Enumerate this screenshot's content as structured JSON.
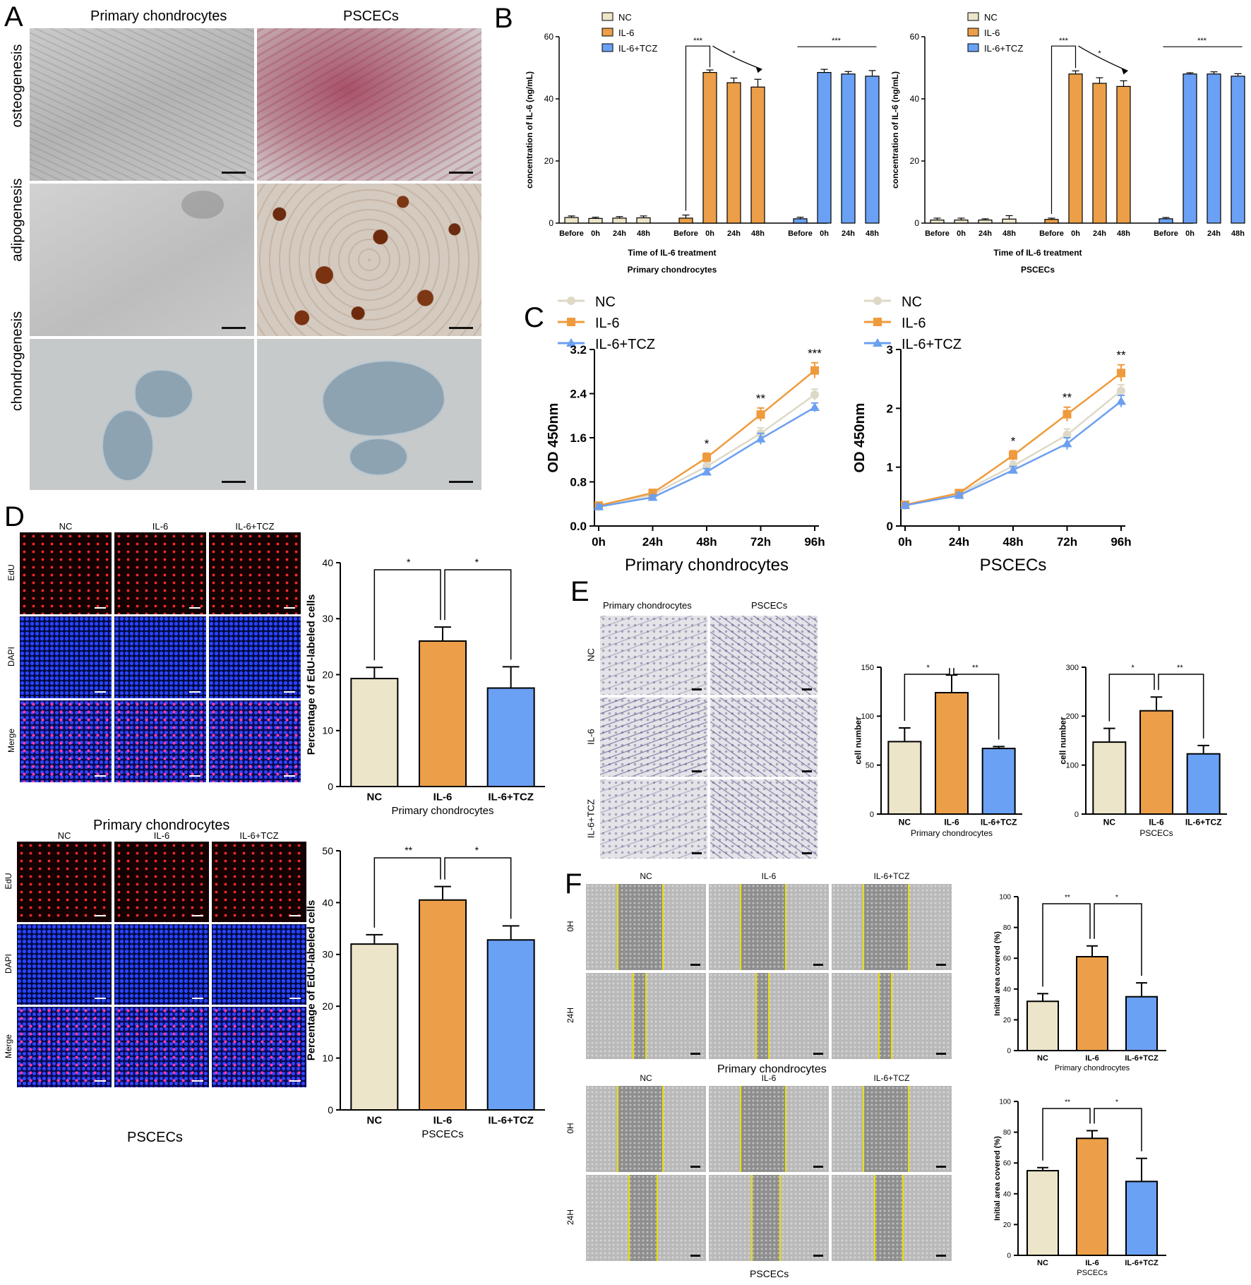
{
  "colors": {
    "nc": "#ece5c9",
    "il6": "#ec9f48",
    "tcz": "#6aa1f5",
    "line_nc": "#ded9c6",
    "line_il6": "#ef9a3c",
    "line_tcz": "#6b9ff0"
  },
  "panelA": {
    "letter": "A",
    "col_labels": [
      "Primary chondrocytes",
      "PSCECs"
    ],
    "row_labels": [
      "osteogenesis",
      "adipogenesis",
      "chondrogenesis"
    ]
  },
  "panelB": {
    "letter": "B",
    "legend": [
      "NC",
      "IL-6",
      "IL-6+TCZ"
    ],
    "ylabel": "concentration of IL-6 (ng/mL)",
    "xlabel": "Time of IL-6 treatment",
    "ticks": [
      "0",
      "20",
      "40",
      "60"
    ],
    "time_labels": [
      "Before",
      "0h",
      "24h",
      "48h"
    ],
    "sig": [
      "***",
      "*",
      "***"
    ],
    "charts": [
      {
        "title": "Primary chondrocytes",
        "groups": [
          {
            "name": "NC",
            "values": [
              1.8,
              1.5,
              1.6,
              1.7
            ]
          },
          {
            "name": "IL-6",
            "values": [
              1.6,
              48.5,
              45.2,
              43.8
            ]
          },
          {
            "name": "IL-6+TCZ",
            "values": [
              1.4,
              48.5,
              48.0,
              47.3
            ]
          }
        ],
        "errors": [
          [
            0.5,
            0.4,
            0.5,
            0.6
          ],
          [
            1.0,
            0.8,
            1.5,
            2.5
          ],
          [
            0.5,
            1.0,
            0.8,
            1.8
          ]
        ]
      },
      {
        "title": "PSCECs",
        "groups": [
          {
            "name": "NC",
            "values": [
              1.0,
              1.0,
              1.0,
              1.3
            ]
          },
          {
            "name": "IL-6",
            "values": [
              1.2,
              48.0,
              45.0,
              44.0
            ]
          },
          {
            "name": "IL-6+TCZ",
            "values": [
              1.4,
              48.0,
              48.0,
              47.3
            ]
          }
        ],
        "errors": [
          [
            0.6,
            0.6,
            0.4,
            1.1
          ],
          [
            0.4,
            1.0,
            1.8,
            1.8
          ],
          [
            0.4,
            0.4,
            0.7,
            0.8
          ]
        ]
      }
    ]
  },
  "panelC": {
    "letter": "C",
    "legend": [
      "NC",
      "IL-6",
      "IL-6+TCZ"
    ],
    "ylabel": "OD 450nm",
    "x": [
      "0h",
      "24h",
      "48h",
      "72h",
      "96h"
    ],
    "charts": [
      {
        "title": "Primary chondrocytes",
        "ylim": [
          0,
          3.2
        ],
        "ticks": [
          "0.0",
          "0.8",
          "1.6",
          "2.4",
          "3.2"
        ],
        "tickvals": [
          0,
          0.8,
          1.6,
          2.4,
          3.2
        ],
        "sig": [
          "",
          "",
          "*",
          "**",
          "***"
        ],
        "series": [
          {
            "name": "NC",
            "values": [
              0.35,
              0.57,
              1.08,
              1.68,
              2.38
            ],
            "err": [
              0.04,
              0.04,
              0.08,
              0.1,
              0.1
            ]
          },
          {
            "name": "IL-6",
            "values": [
              0.37,
              0.6,
              1.24,
              2.02,
              2.82
            ],
            "err": [
              0.04,
              0.04,
              0.08,
              0.12,
              0.14
            ]
          },
          {
            "name": "IL-6+TCZ",
            "values": [
              0.35,
              0.52,
              0.98,
              1.58,
              2.15
            ],
            "err": [
              0.04,
              0.04,
              0.06,
              0.1,
              0.08
            ]
          }
        ]
      },
      {
        "title": "PSCECs",
        "ylim": [
          0,
          3
        ],
        "ticks": [
          "0",
          "1",
          "2",
          "3"
        ],
        "tickvals": [
          0,
          1,
          2,
          3
        ],
        "sig": [
          "",
          "",
          "*",
          "**",
          "**"
        ],
        "series": [
          {
            "name": "NC",
            "values": [
              0.35,
              0.55,
              1.02,
              1.55,
              2.3
            ],
            "err": [
              0.04,
              0.04,
              0.08,
              0.1,
              0.1
            ]
          },
          {
            "name": "IL-6",
            "values": [
              0.36,
              0.56,
              1.2,
              1.9,
              2.6
            ],
            "err": [
              0.04,
              0.04,
              0.08,
              0.12,
              0.14
            ]
          },
          {
            "name": "IL-6+TCZ",
            "values": [
              0.35,
              0.52,
              0.95,
              1.4,
              2.12
            ],
            "err": [
              0.04,
              0.04,
              0.06,
              0.1,
              0.1
            ]
          }
        ]
      }
    ]
  },
  "panelD": {
    "letter": "D",
    "col_labels": [
      "NC",
      "IL-6",
      "IL-6+TCZ"
    ],
    "row_labels": [
      "EdU",
      "DAPI",
      "Merge"
    ],
    "ylabel": "Percentage of EdU-labeled cells",
    "categories": [
      "NC",
      "IL-6",
      "IL-6+TCZ"
    ],
    "charts": [
      {
        "title": "Primary chondrocytes",
        "ylim": [
          0,
          40
        ],
        "ticks": [
          "0",
          "10",
          "20",
          "30",
          "40"
        ],
        "values": [
          19.3,
          26.0,
          17.6
        ],
        "err": [
          2.0,
          2.5,
          3.8
        ],
        "sig": [
          "*",
          "*"
        ]
      },
      {
        "title": "PSCECs",
        "ylim": [
          0,
          50
        ],
        "ticks": [
          "0",
          "10",
          "20",
          "30",
          "40",
          "50"
        ],
        "values": [
          32.0,
          40.5,
          32.8
        ],
        "err": [
          1.8,
          2.6,
          2.7
        ],
        "sig": [
          "**",
          "*"
        ]
      }
    ]
  },
  "panelE": {
    "letter": "E",
    "col_labels": [
      "Primary chondrocytes",
      "PSCECs"
    ],
    "row_labels": [
      "NC",
      "IL-6",
      "IL-6+TCZ"
    ],
    "ylabel": "cell number",
    "categories": [
      "NC",
      "IL-6",
      "IL-6+TCZ"
    ],
    "charts": [
      {
        "title": "Primary chondrocytes",
        "ylim": [
          0,
          150
        ],
        "ticks": [
          "0",
          "50",
          "100",
          "150"
        ],
        "values": [
          74,
          124,
          67
        ],
        "err": [
          14,
          18,
          2
        ],
        "sig": [
          "*",
          "**"
        ]
      },
      {
        "title": "PSCECs",
        "ylim": [
          0,
          300
        ],
        "ticks": [
          "0",
          "100",
          "200",
          "300"
        ],
        "values": [
          147,
          211,
          123
        ],
        "err": [
          28,
          28,
          17
        ],
        "sig": [
          "*",
          "**"
        ]
      }
    ]
  },
  "panelF": {
    "letter": "F",
    "col_labels": [
      "NC",
      "IL-6",
      "IL-6+TCZ"
    ],
    "row_labels": [
      "0H",
      "24H"
    ],
    "group_labels": [
      "Primary chondrocytes",
      "PSCECs"
    ],
    "ylabel": "Initial area covered (%)",
    "categories": [
      "NC",
      "IL-6",
      "IL-6+TCZ"
    ],
    "charts": [
      {
        "title": "Primary chondrocytes",
        "ylim": [
          0,
          100
        ],
        "ticks": [
          "0",
          "20",
          "40",
          "60",
          "80",
          "100"
        ],
        "values": [
          32,
          61,
          35
        ],
        "err": [
          5,
          7,
          9
        ],
        "sig": [
          "**",
          "*"
        ]
      },
      {
        "title": "PSCECs",
        "ylim": [
          0,
          100
        ],
        "ticks": [
          "0",
          "20",
          "40",
          "60",
          "80",
          "100"
        ],
        "values": [
          55,
          76,
          48
        ],
        "err": [
          2,
          5,
          15
        ],
        "sig": [
          "**",
          "*"
        ]
      }
    ]
  }
}
